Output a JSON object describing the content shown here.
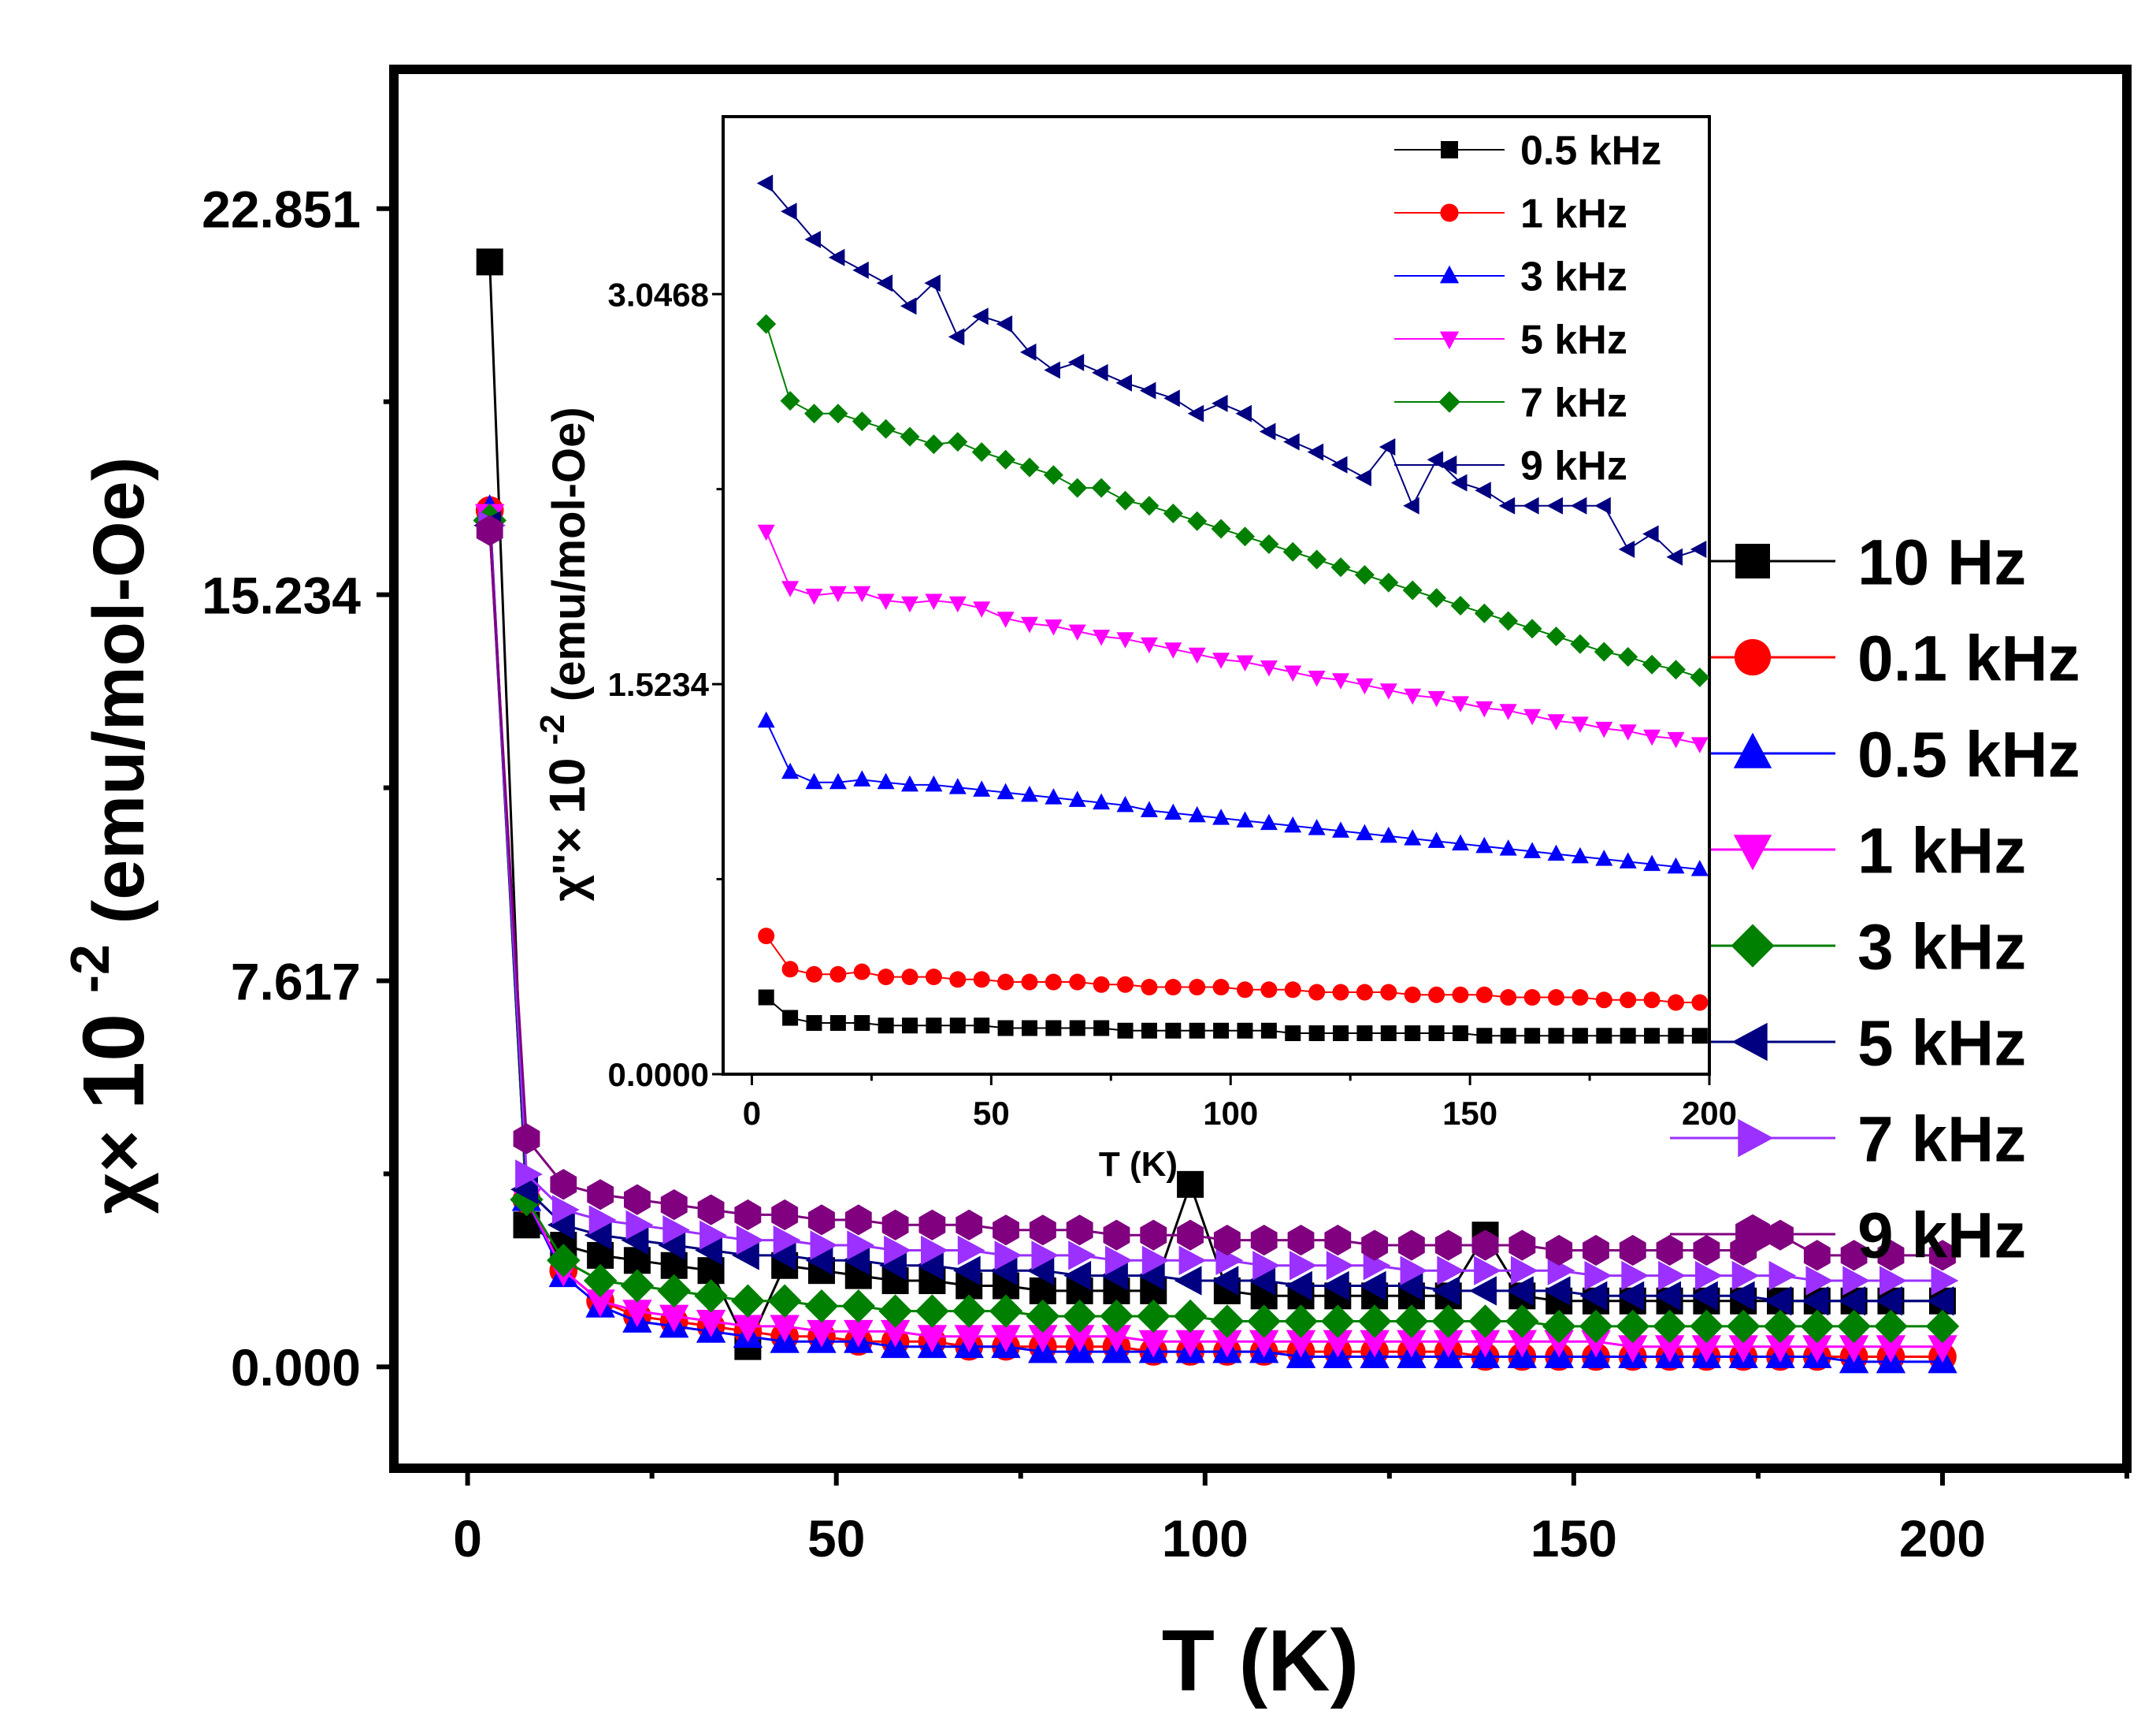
{
  "chart_data": [
    {
      "type": "scatter",
      "name": "main",
      "xlabel": "T (K)",
      "ylabel_symbol": "χ×",
      "ylabel_base": "10",
      "ylabel_exp": "-2",
      "ylabel_unit": "(emu/mol-Oe)",
      "xlim": [
        -10,
        225
      ],
      "ylim": [
        -2.0,
        25.6
      ],
      "xticks": [
        0,
        50,
        100,
        150,
        200
      ],
      "xtick_labels": [
        "0",
        "50",
        "100",
        "150",
        "200"
      ],
      "yticks": [
        0.0,
        7.617,
        15.234,
        22.851
      ],
      "ytick_labels": [
        "0.000",
        "7.617",
        "15.234",
        "22.851"
      ],
      "legend_position": "right",
      "x": [
        3,
        8,
        13,
        18,
        23,
        28,
        33,
        38,
        43,
        48,
        53,
        58,
        63,
        68,
        73,
        78,
        83,
        88,
        93,
        98,
        103,
        108,
        113,
        118,
        123,
        128,
        133,
        138,
        143,
        148,
        153,
        158,
        163,
        168,
        173,
        178,
        183,
        188,
        193,
        200
      ],
      "series": [
        {
          "name": "10 Hz",
          "color": "#000000",
          "marker": "square",
          "values": [
            21.8,
            2.8,
            2.4,
            2.2,
            2.1,
            2.0,
            1.9,
            0.4,
            2.0,
            1.9,
            1.8,
            1.7,
            1.7,
            1.6,
            1.6,
            1.5,
            1.5,
            1.5,
            1.5,
            3.6,
            1.5,
            1.4,
            1.4,
            1.4,
            1.4,
            1.4,
            1.4,
            2.6,
            1.4,
            1.3,
            1.3,
            1.3,
            1.3,
            1.3,
            1.3,
            1.3,
            1.3,
            1.3,
            1.3,
            1.3
          ]
        },
        {
          "name": "0.1 kHz",
          "color": "#ff0000",
          "marker": "circle",
          "values": [
            16.9,
            3.3,
            1.9,
            1.3,
            1.0,
            0.9,
            0.8,
            0.7,
            0.6,
            0.6,
            0.5,
            0.5,
            0.5,
            0.4,
            0.4,
            0.4,
            0.4,
            0.4,
            0.3,
            0.3,
            0.3,
            0.3,
            0.3,
            0.3,
            0.3,
            0.3,
            0.3,
            0.2,
            0.2,
            0.2,
            0.2,
            0.2,
            0.2,
            0.2,
            0.2,
            0.2,
            0.2,
            0.2,
            0.2,
            0.2
          ]
        },
        {
          "name": "0.5 kHz",
          "color": "#0000ff",
          "marker": "triangle-up",
          "values": [
            16.9,
            3.3,
            1.8,
            1.2,
            0.9,
            0.8,
            0.7,
            0.6,
            0.5,
            0.5,
            0.5,
            0.4,
            0.4,
            0.4,
            0.4,
            0.3,
            0.3,
            0.3,
            0.3,
            0.3,
            0.3,
            0.3,
            0.2,
            0.2,
            0.2,
            0.2,
            0.2,
            0.2,
            0.2,
            0.2,
            0.2,
            0.2,
            0.2,
            0.2,
            0.2,
            0.2,
            0.2,
            0.1,
            0.1,
            0.1
          ]
        },
        {
          "name": "1 kHz",
          "color": "#ff00ff",
          "marker": "triangle-down",
          "values": [
            16.8,
            3.3,
            1.9,
            1.3,
            1.1,
            1.0,
            0.9,
            0.8,
            0.8,
            0.7,
            0.7,
            0.7,
            0.6,
            0.6,
            0.6,
            0.6,
            0.6,
            0.6,
            0.5,
            0.5,
            0.5,
            0.5,
            0.5,
            0.5,
            0.5,
            0.5,
            0.5,
            0.5,
            0.5,
            0.5,
            0.5,
            0.4,
            0.4,
            0.4,
            0.4,
            0.4,
            0.4,
            0.4,
            0.4,
            0.4
          ]
        },
        {
          "name": "3 kHz",
          "color": "#008000",
          "marker": "diamond",
          "values": [
            16.7,
            3.3,
            2.1,
            1.7,
            1.6,
            1.5,
            1.4,
            1.3,
            1.3,
            1.2,
            1.2,
            1.1,
            1.1,
            1.1,
            1.1,
            1.0,
            1.0,
            1.0,
            1.0,
            1.0,
            0.9,
            0.9,
            0.9,
            0.9,
            0.9,
            0.9,
            0.9,
            0.9,
            0.9,
            0.8,
            0.8,
            0.8,
            0.8,
            0.8,
            0.8,
            0.8,
            0.8,
            0.8,
            0.8,
            0.8
          ]
        },
        {
          "name": "5 kHz",
          "color": "#000080",
          "marker": "triangle-left",
          "values": [
            16.6,
            3.5,
            2.8,
            2.6,
            2.5,
            2.4,
            2.3,
            2.2,
            2.2,
            2.1,
            2.1,
            2.0,
            2.0,
            1.9,
            1.9,
            1.9,
            1.8,
            1.8,
            1.8,
            1.7,
            1.7,
            1.7,
            1.6,
            1.6,
            1.6,
            1.6,
            1.5,
            1.5,
            1.5,
            1.5,
            1.4,
            1.4,
            1.4,
            1.4,
            1.4,
            1.3,
            1.3,
            1.3,
            1.3,
            1.3
          ]
        },
        {
          "name": "7 kHz",
          "color": "#9b30ff",
          "marker": "triangle-right",
          "values": [
            16.6,
            3.8,
            3.1,
            2.9,
            2.8,
            2.7,
            2.6,
            2.5,
            2.5,
            2.4,
            2.4,
            2.3,
            2.3,
            2.3,
            2.2,
            2.2,
            2.2,
            2.1,
            2.1,
            2.1,
            2.1,
            2.0,
            2.0,
            2.0,
            2.0,
            1.9,
            1.9,
            1.9,
            1.9,
            1.9,
            1.8,
            1.8,
            1.8,
            1.8,
            1.8,
            1.8,
            1.7,
            1.7,
            1.7,
            1.7
          ]
        },
        {
          "name": "9 kHz",
          "color": "#800080",
          "marker": "hexagon",
          "values": [
            16.5,
            4.5,
            3.6,
            3.4,
            3.3,
            3.2,
            3.1,
            3.0,
            3.0,
            2.9,
            2.9,
            2.8,
            2.8,
            2.8,
            2.7,
            2.7,
            2.7,
            2.6,
            2.6,
            2.6,
            2.5,
            2.5,
            2.5,
            2.5,
            2.4,
            2.4,
            2.4,
            2.4,
            2.4,
            2.3,
            2.3,
            2.3,
            2.3,
            2.3,
            2.3,
            2.6,
            2.2,
            2.2,
            2.2,
            2.2
          ]
        }
      ]
    },
    {
      "type": "line",
      "name": "inset",
      "xlabel": "T (K)",
      "ylabel_symbol": "χ''×",
      "ylabel_base": "10",
      "ylabel_exp": "-2",
      "ylabel_unit": "(emu/mol-Oe)",
      "xlim": [
        -6,
        200
      ],
      "ylim": [
        0.0,
        3.74
      ],
      "xticks": [
        0,
        50,
        100,
        150,
        200
      ],
      "xtick_labels": [
        "0",
        "50",
        "100",
        "150",
        "200"
      ],
      "yticks": [
        0.0,
        1.5234,
        3.0468
      ],
      "ytick_labels": [
        "0.0000",
        "1.5234",
        "3.0468"
      ],
      "legend_position": "top-right",
      "x": [
        3,
        8,
        13,
        18,
        23,
        28,
        33,
        38,
        43,
        48,
        53,
        58,
        63,
        68,
        73,
        78,
        83,
        88,
        93,
        98,
        103,
        108,
        113,
        118,
        123,
        128,
        133,
        138,
        143,
        148,
        153,
        158,
        163,
        168,
        173,
        178,
        183,
        188,
        193,
        198
      ],
      "series": [
        {
          "name": "0.5 kHz",
          "color": "#000000",
          "marker": "square",
          "values": [
            0.3,
            0.22,
            0.2,
            0.2,
            0.2,
            0.19,
            0.19,
            0.19,
            0.19,
            0.19,
            0.18,
            0.18,
            0.18,
            0.18,
            0.18,
            0.17,
            0.17,
            0.17,
            0.17,
            0.17,
            0.17,
            0.17,
            0.16,
            0.16,
            0.16,
            0.16,
            0.16,
            0.16,
            0.16,
            0.16,
            0.15,
            0.15,
            0.15,
            0.15,
            0.15,
            0.15,
            0.15,
            0.15,
            0.15,
            0.15
          ]
        },
        {
          "name": "1 kHz",
          "color": "#ff0000",
          "marker": "circle",
          "values": [
            0.54,
            0.41,
            0.39,
            0.39,
            0.4,
            0.38,
            0.38,
            0.38,
            0.37,
            0.37,
            0.36,
            0.36,
            0.36,
            0.36,
            0.35,
            0.35,
            0.34,
            0.34,
            0.34,
            0.34,
            0.33,
            0.33,
            0.33,
            0.32,
            0.32,
            0.32,
            0.32,
            0.31,
            0.31,
            0.31,
            0.31,
            0.3,
            0.3,
            0.3,
            0.3,
            0.29,
            0.29,
            0.29,
            0.28,
            0.28
          ]
        },
        {
          "name": "3 kHz",
          "color": "#0000ff",
          "marker": "triangle-up",
          "values": [
            1.38,
            1.18,
            1.14,
            1.14,
            1.15,
            1.14,
            1.13,
            1.13,
            1.12,
            1.11,
            1.1,
            1.09,
            1.08,
            1.07,
            1.06,
            1.05,
            1.03,
            1.02,
            1.01,
            1.0,
            0.99,
            0.98,
            0.97,
            0.96,
            0.95,
            0.94,
            0.93,
            0.92,
            0.91,
            0.9,
            0.89,
            0.88,
            0.87,
            0.86,
            0.85,
            0.84,
            0.83,
            0.82,
            0.81,
            0.8
          ]
        },
        {
          "name": "5 kHz",
          "color": "#ff00ff",
          "marker": "triangle-down",
          "values": [
            2.12,
            1.9,
            1.87,
            1.88,
            1.88,
            1.85,
            1.84,
            1.85,
            1.84,
            1.82,
            1.78,
            1.76,
            1.75,
            1.73,
            1.71,
            1.7,
            1.68,
            1.66,
            1.64,
            1.62,
            1.61,
            1.59,
            1.57,
            1.55,
            1.54,
            1.52,
            1.5,
            1.48,
            1.47,
            1.45,
            1.43,
            1.42,
            1.4,
            1.38,
            1.37,
            1.35,
            1.34,
            1.32,
            1.31,
            1.29
          ]
        },
        {
          "name": "7 kHz",
          "color": "#008000",
          "marker": "diamond",
          "values": [
            2.93,
            2.63,
            2.58,
            2.58,
            2.55,
            2.52,
            2.49,
            2.46,
            2.47,
            2.43,
            2.4,
            2.37,
            2.34,
            2.29,
            2.29,
            2.24,
            2.22,
            2.19,
            2.16,
            2.13,
            2.1,
            2.07,
            2.04,
            2.01,
            1.98,
            1.95,
            1.92,
            1.89,
            1.86,
            1.83,
            1.8,
            1.77,
            1.74,
            1.71,
            1.68,
            1.65,
            1.63,
            1.6,
            1.58,
            1.55
          ]
        },
        {
          "name": "9 kHz",
          "color": "#000080",
          "marker": "triangle-left",
          "values": [
            3.48,
            3.37,
            3.26,
            3.19,
            3.14,
            3.09,
            3.0,
            3.09,
            2.88,
            2.96,
            2.93,
            2.82,
            2.75,
            2.78,
            2.74,
            2.7,
            2.67,
            2.64,
            2.58,
            2.62,
            2.58,
            2.51,
            2.47,
            2.43,
            2.38,
            2.33,
            2.45,
            2.22,
            2.4,
            2.31,
            2.28,
            2.22,
            2.22,
            2.22,
            2.22,
            2.22,
            2.05,
            2.11,
            2.02,
            2.05
          ]
        }
      ]
    }
  ]
}
